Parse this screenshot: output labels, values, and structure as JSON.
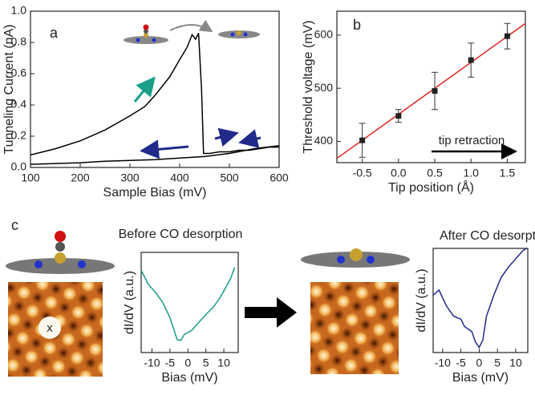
{
  "chart_data": [
    {
      "type": "line",
      "label": "a",
      "xlabel": "Sample Bias (mV)",
      "ylabel": "Tunneling Current (nA)",
      "xlim": [
        100,
        600
      ],
      "ylim": [
        0,
        1
      ],
      "xticks": [
        100,
        200,
        300,
        400,
        500,
        600
      ],
      "yticks": [
        {
          "value": 0,
          "label": "0.0"
        },
        0.2,
        0.4,
        0.6,
        0.8,
        {
          "value": 1,
          "label": "1.0"
        }
      ],
      "series": [
        {
          "color": "#000000",
          "x": [
            100,
            150,
            200,
            250,
            300,
            330,
            350,
            380,
            400,
            415,
            425,
            432,
            438,
            444,
            448,
            460,
            480,
            500,
            520,
            540,
            560,
            580,
            600
          ],
          "values": [
            0.08,
            0.12,
            0.17,
            0.24,
            0.33,
            0.39,
            0.46,
            0.58,
            0.69,
            0.77,
            0.85,
            0.82,
            0.86,
            0.5,
            0.09,
            0.09,
            0.1,
            0.1,
            0.11,
            0.11,
            0.12,
            0.13,
            0.13
          ]
        },
        {
          "color": "#000000",
          "x": [
            600,
            550,
            500,
            450,
            400,
            350,
            300,
            250,
            200,
            150,
            100
          ],
          "values": [
            0.14,
            0.12,
            0.09,
            0.07,
            0.06,
            0.05,
            0.045,
            0.04,
            0.03,
            0.025,
            0.02
          ]
        }
      ]
    },
    {
      "type": "scatter",
      "label": "b",
      "xlabel": "Tip position (Å)",
      "ylabel": "Threshold voltage (mV)",
      "annotation": "tip retraction",
      "xlim": [
        -0.85,
        1.75
      ],
      "ylim": [
        360,
        645
      ],
      "xticks": [
        -0.5,
        {
          "value": 0,
          "label": "0.0"
        },
        0.5,
        {
          "value": 1,
          "label": "1.0"
        },
        1.5
      ],
      "yticks": [
        400,
        500,
        600
      ],
      "x": [
        -0.5,
        0,
        0.5,
        1,
        1.5
      ],
      "series": [
        {
          "color": "#222222",
          "values": [
            402,
            448,
            495,
            553,
            598
          ],
          "errors": [
            32,
            12,
            35,
            32,
            24
          ]
        }
      ],
      "fit": {
        "color": "#e0201b",
        "x": [
          -0.85,
          1.75
        ],
        "values": [
          368,
          622
        ]
      }
    },
    {
      "type": "line",
      "label": "c",
      "title": "Before CO desorption",
      "annotation": "x",
      "xlabel": "Bias (mV)",
      "ylabel": "dI/dV (a.u.)",
      "xlim": [
        -13,
        14
      ],
      "ylim": [
        0,
        1
      ],
      "xticks": [
        -10,
        -5,
        0,
        5,
        10
      ],
      "series": [
        {
          "color": "#1a9a8a",
          "x": [
            -13,
            -11,
            -9,
            -7,
            -5,
            -3,
            -2,
            -1,
            0,
            1,
            3,
            5,
            7,
            9,
            11,
            12,
            13
          ],
          "values": [
            0.82,
            0.68,
            0.6,
            0.5,
            0.35,
            0.13,
            0.12,
            0.18,
            0.2,
            0.22,
            0.3,
            0.38,
            0.45,
            0.55,
            0.68,
            0.75,
            0.85
          ]
        }
      ]
    },
    {
      "type": "line",
      "title": "After CO desorption",
      "xlabel": "Bias (mV)",
      "ylabel": "dI/dV (a.u.)",
      "xlim": [
        -12.6,
        13.3
      ],
      "ylim": [
        0,
        1
      ],
      "xticks": [
        -10,
        -5,
        0,
        5,
        10
      ],
      "series": [
        {
          "color": "#1f2a8a",
          "x": [
            -12.6,
            -11,
            -9,
            -7,
            -5,
            -4,
            -2,
            -1,
            0,
            1,
            2,
            4,
            6,
            8,
            10,
            12,
            13
          ],
          "values": [
            0.55,
            0.6,
            0.45,
            0.35,
            0.32,
            0.25,
            0.2,
            0.1,
            0.05,
            0.12,
            0.35,
            0.55,
            0.72,
            0.82,
            0.9,
            0.98,
            1.0
          ]
        }
      ]
    }
  ]
}
